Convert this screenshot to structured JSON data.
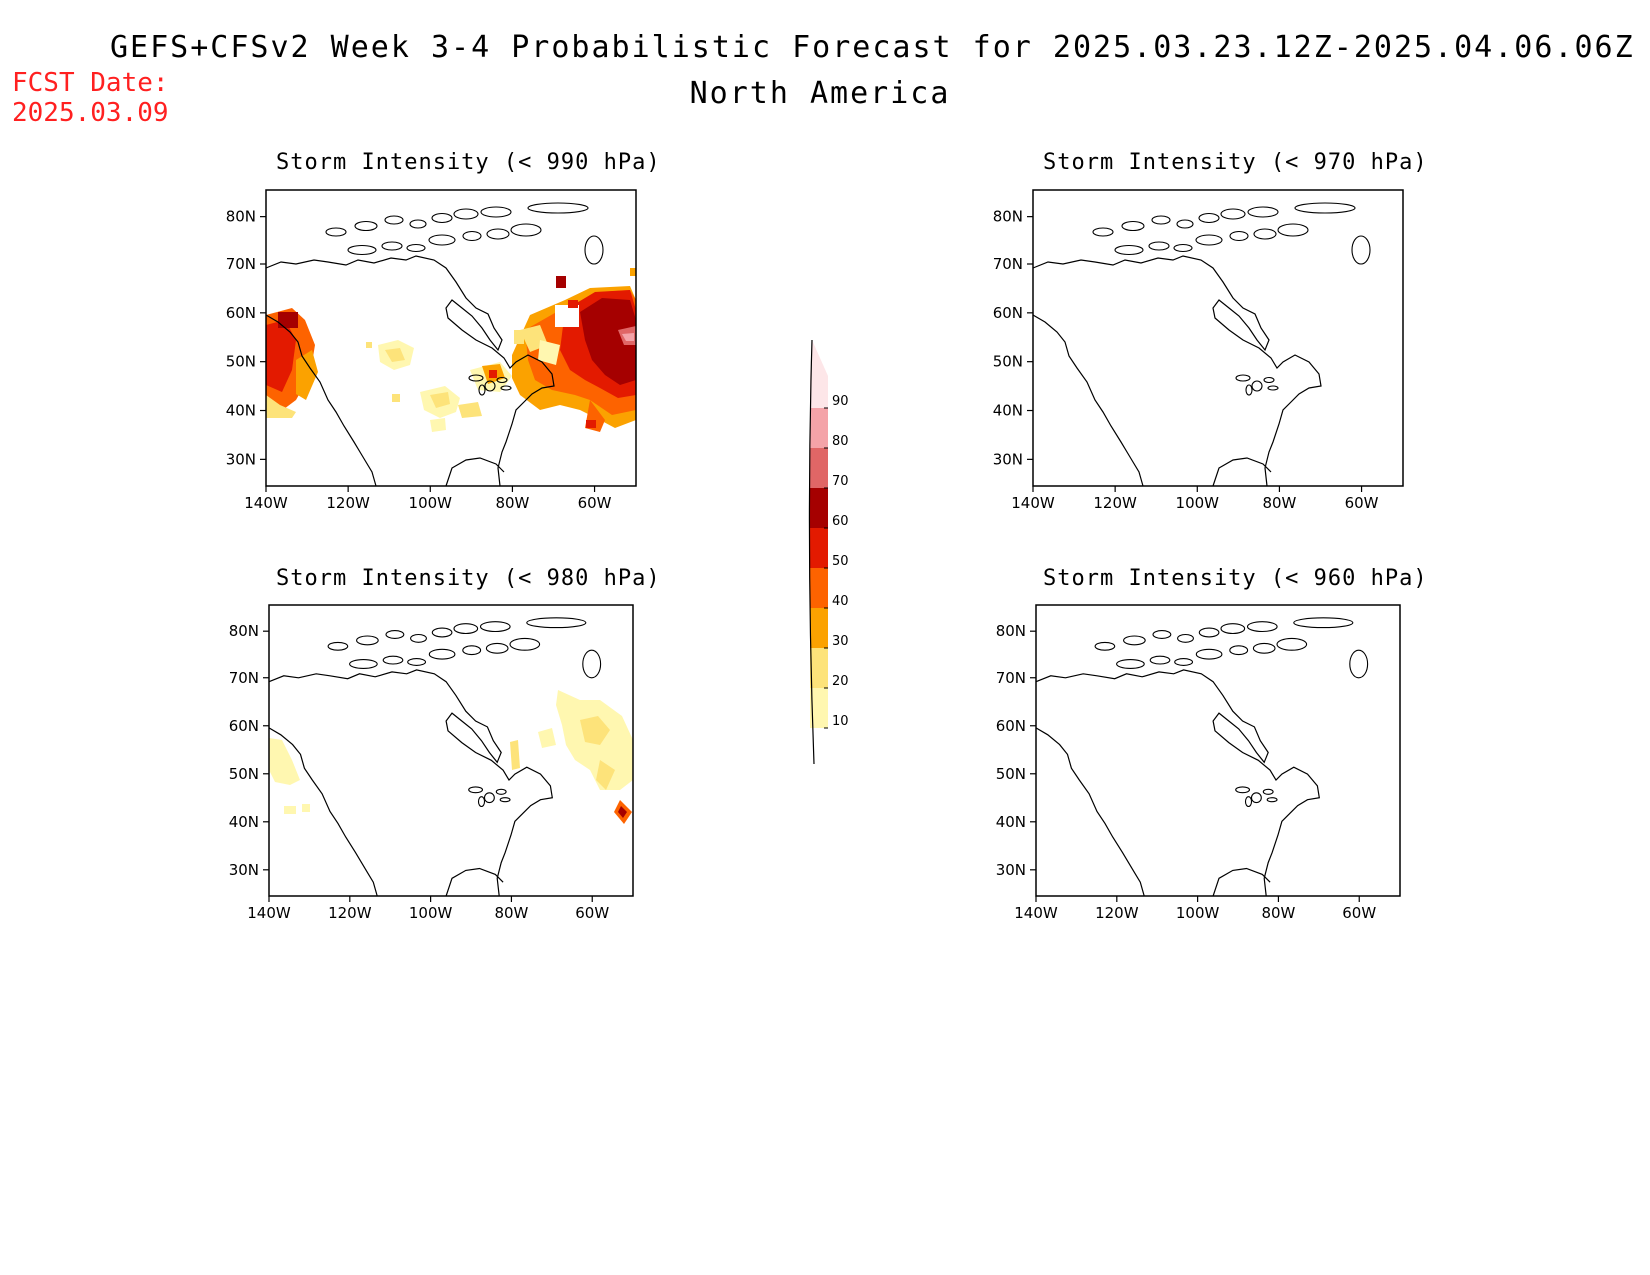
{
  "header": {
    "title": "GEFS+CFSv2 Week 3-4 Probabilistic Forecast for 2025.03.23.12Z-2025.04.06.06Z",
    "region": "North America",
    "fcst_label": "FCST Date:",
    "fcst_date": "2025.03.09"
  },
  "panels": [
    {
      "title": "Storm Intensity (< 990 hPa)"
    },
    {
      "title": "Storm Intensity (< 970 hPa)"
    },
    {
      "title": "Storm Intensity (< 980 hPa)"
    },
    {
      "title": "Storm Intensity (< 960 hPa)"
    }
  ],
  "axes": {
    "lat_labels": [
      "80N",
      "70N",
      "60N",
      "50N",
      "40N",
      "30N"
    ],
    "lon_labels": [
      "140W",
      "120W",
      "100W",
      "80W",
      "60W"
    ]
  },
  "colorbar": {
    "levels": [
      "10",
      "20",
      "30",
      "40",
      "50",
      "60",
      "70",
      "80",
      "90"
    ],
    "colors": [
      "#fff7b0",
      "#fde37a",
      "#fba200",
      "#fd6300",
      "#e31a00",
      "#a50000",
      "#e06666",
      "#f4a3a8",
      "#fde6e8"
    ]
  }
}
